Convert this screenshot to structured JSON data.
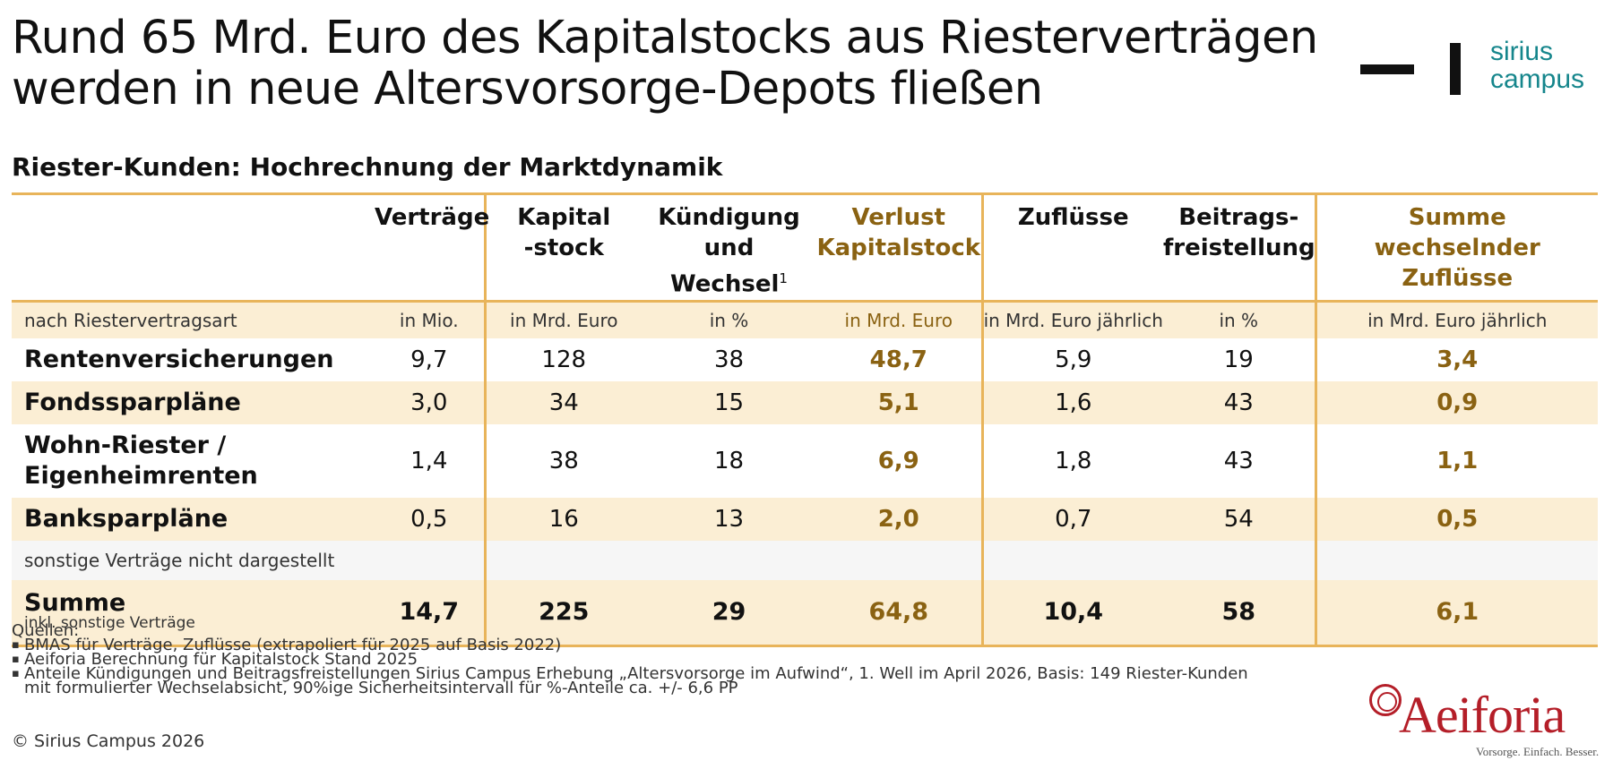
{
  "title": {
    "line1": "Rund 65 Mrd. Euro des Kapitalstocks aus Riesterverträgen",
    "line2": "werden in neue Altersvorsorge-Depots fließen"
  },
  "brand": {
    "line1": "sirius",
    "line2": "campus",
    "color": "#16868c"
  },
  "subtitle": "Riester-Kunden: Hochrechnung der Marktdynamik",
  "table": {
    "headers": [
      {
        "line1": "",
        "line2": ""
      },
      {
        "line1": "Verträge",
        "line2": ""
      },
      {
        "line1": "Kapital",
        "line2": "-stock"
      },
      {
        "line1": "Kündigung",
        "line2": "und Wechsel",
        "sup": "1"
      },
      {
        "line1": "Verlust",
        "line2": "Kapitalstock"
      },
      {
        "line1": "Zuflüsse",
        "line2": ""
      },
      {
        "line1": "Beitrags-",
        "line2": "freistellung"
      },
      {
        "line1": "Summe",
        "line2": "wechselnder Zuflüsse"
      }
    ],
    "units": [
      "nach Riestervertragsart",
      "in Mio.",
      "in Mrd. Euro",
      "in %",
      "in Mrd. Euro",
      "in Mrd. Euro jährlich",
      "in %",
      "in Mrd. Euro jährlich"
    ],
    "rows": [
      {
        "label1": "Rentenversicherungen",
        "label2": "",
        "values": [
          "9,7",
          "128",
          "38",
          "48,7",
          "5,9",
          "19",
          "3,4"
        ]
      },
      {
        "label1": "Fondssparpläne",
        "label2": "",
        "values": [
          "3,0",
          "34",
          "15",
          "5,1",
          "1,6",
          "43",
          "0,9"
        ]
      },
      {
        "label1": "Wohn-Riester /",
        "label2": "Eigenheimrenten",
        "values": [
          "1,4",
          "38",
          "18",
          "6,9",
          "1,8",
          "43",
          "1,1"
        ]
      },
      {
        "label1": "Banksparpläne",
        "label2": "",
        "values": [
          "0,5",
          "16",
          "13",
          "2,0",
          "0,7",
          "54",
          "0,5"
        ]
      }
    ],
    "misc_row": "sonstige Verträge nicht dargestellt",
    "sum": {
      "label": "Summe",
      "sublabel": "inkl. sonstige Verträge",
      "values": [
        "14,7",
        "225",
        "29",
        "64,8",
        "10,4",
        "58",
        "6,1"
      ]
    },
    "accent_color": "#e8b45a",
    "highlight_text_color": "#8a6212",
    "band_color": "#fbeed4"
  },
  "sources": {
    "heading": "Quellen:",
    "items": [
      "BMAS für Verträge, Zuflüsse (extrapoliert für 2025 auf Basis 2022)",
      "Aeiforia Berechnung für Kapitalstock Stand 2025",
      "Anteile Kündigungen und Beitragsfreistellungen Sirius Campus Erhebung „Altersvorsorge im Aufwind“, 1. Well im April 2026, Basis: 149 Riester-Kunden mit formulierter Wechselabsicht, 90%ige Sicherheitsintervall für %-Anteile ca. +/- 6,6 PP"
    ]
  },
  "copyright": "© Sirius Campus 2026",
  "partner": {
    "name": "Aeiforia",
    "claim": "Vorsorge. Einfach. Besser.",
    "color": "#b41e28"
  }
}
